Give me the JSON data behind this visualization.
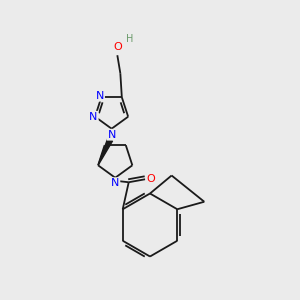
{
  "bg_color": "#ebebeb",
  "atom_color_N": "#0000ff",
  "atom_color_O": "#ff0000",
  "atom_color_C": "#1a1a1a",
  "atom_color_H": "#6a9a6a",
  "bond_color": "#1a1a1a",
  "font_size_atom": 8.0,
  "font_size_H": 7.0,
  "lw": 1.3,
  "xlim": [
    0,
    10
  ],
  "ylim": [
    0,
    10
  ]
}
